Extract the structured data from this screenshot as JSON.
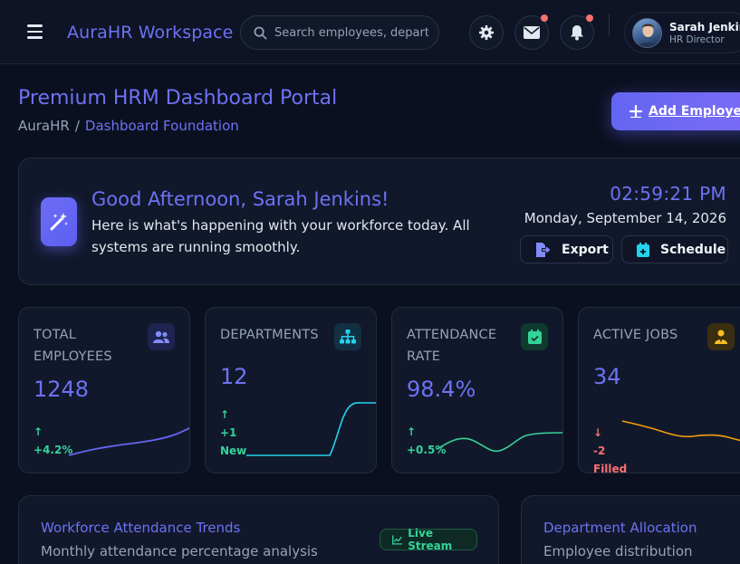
{
  "header": {
    "brand": "AuraHR Workspace",
    "search_placeholder": "Search employees, departments...",
    "user": {
      "name": "Sarah Jenkins",
      "role": "HR Director"
    },
    "icons": [
      "menu-icon",
      "search-icon",
      "gear-icon",
      "mail-icon",
      "bell-icon"
    ],
    "notification_dot_color": "#f87171"
  },
  "page": {
    "title": "Premium HRM Dashboard Portal",
    "breadcrumb": {
      "root": "AuraHR",
      "separator": "/",
      "current": "Dashboard Foundation"
    },
    "add_button": "Add Employee"
  },
  "welcome": {
    "greeting": "Good Afternoon, Sarah Jenkins!",
    "subtitle": "Here is what's happening with your workforce today. All systems are running smoothly.",
    "time": "02:59:21 PM",
    "date": "Monday, September 14, 2026",
    "export_label": "Export",
    "schedule_label": "Schedule"
  },
  "stats": [
    {
      "label": "TOTAL EMPLOYEES",
      "value": "1248",
      "trend_arrow": "↑",
      "trend_text": "+4.2%",
      "trend_color": "#34d399",
      "icon": "users-icon",
      "accent": "#6366f1",
      "line_color": "#6366f1"
    },
    {
      "label": "DEPARTMENTS",
      "value": "12",
      "trend_arrow": "↑",
      "trend_text": "+1 New",
      "trend_color": "#34d399",
      "icon": "sitemap-icon",
      "accent": "#22d3ee",
      "line_color": "#22d3ee"
    },
    {
      "label": "ATTENDANCE RATE",
      "value": "98.4%",
      "trend_arrow": "↑",
      "trend_text": "+0.5%",
      "trend_color": "#34d399",
      "icon": "calendar-check-icon",
      "accent": "#34d399",
      "line_color": "#34d399"
    },
    {
      "label": "ACTIVE JOBS",
      "value": "34",
      "trend_arrow": "↓",
      "trend_text": "-2 Filled",
      "trend_color": "#f87171",
      "icon": "user-tie-icon",
      "accent": "#fbbf24",
      "line_color": "#f59e0b"
    }
  ],
  "panels": {
    "trends": {
      "title": "Workforce Attendance Trends",
      "subtitle": "Monthly attendance percentage analysis",
      "badge": "Live Stream"
    },
    "allocation": {
      "title": "Department Allocation",
      "subtitle": "Employee distribution"
    }
  },
  "colors": {
    "accent": "#6d72f3",
    "background": "#0b1020",
    "card": "#11182b",
    "success": "#34d399",
    "danger": "#f87171"
  }
}
